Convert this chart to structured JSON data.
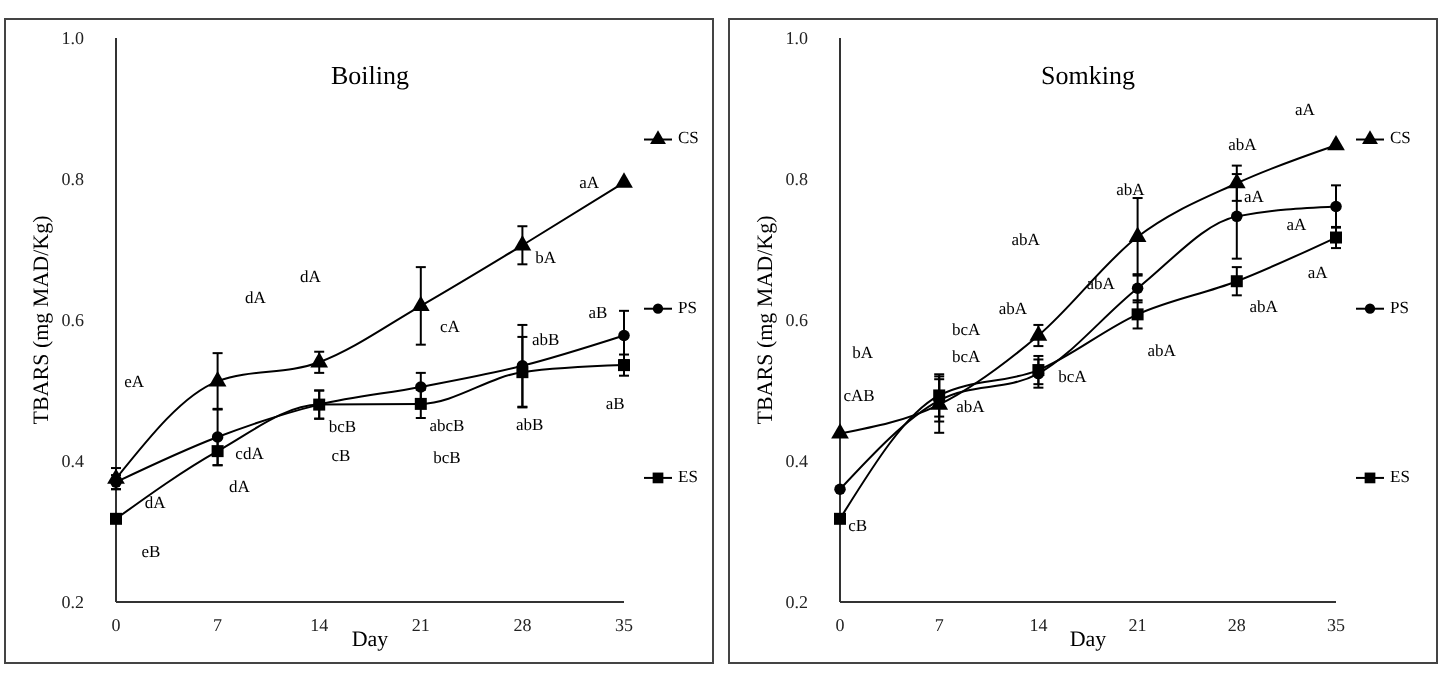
{
  "chart_data": [
    {
      "type": "line",
      "title": "Boiling",
      "xlabel": "Day",
      "ylabel": "TBARS (mg MAD/Kg)",
      "x": [
        0,
        7,
        14,
        21,
        28,
        35
      ],
      "xlim": [
        0,
        35
      ],
      "xticks": [
        0,
        7,
        14,
        21,
        28,
        35
      ],
      "ylim": [
        0.2,
        1.0
      ],
      "yticks": [
        {
          "value": 0.2,
          "label": "0.2"
        },
        {
          "value": 0.4,
          "label": "0.4"
        },
        {
          "value": 0.6,
          "label": "0.6"
        },
        {
          "value": 0.8,
          "label": "0.8"
        },
        {
          "value": 1.0,
          "label": "1.0"
        }
      ],
      "grid": false,
      "legend": "right",
      "line_style": "solid",
      "series": [
        {
          "name": "CS",
          "color": "#000000",
          "marker": "triangle",
          "values": [
            0.375,
            0.513,
            0.54,
            0.62,
            0.706,
            0.795
          ],
          "errors": [
            0.015,
            0.04,
            0.015,
            0.055,
            0.027,
            null
          ]
        },
        {
          "name": "PS",
          "color": "#000000",
          "marker": "circle",
          "values": [
            0.37,
            0.434,
            0.48,
            0.505,
            0.535,
            0.578
          ],
          "errors": [
            0.01,
            0.04,
            0.02,
            0.02,
            0.058,
            0.035
          ]
        },
        {
          "name": "ES",
          "color": "#000000",
          "marker": "square",
          "values": [
            0.318,
            0.414,
            0.48,
            0.481,
            0.526,
            0.536
          ],
          "errors": [
            null,
            0.02,
            0.02,
            0.02,
            0.05,
            0.015
          ]
        }
      ],
      "annotations": [
        "eA",
        "dA",
        "dA",
        "aA",
        "bA",
        "cA",
        "aB",
        "abB",
        "aB",
        "abB",
        "abcB",
        "bcB",
        "bcB",
        "cB",
        "cdA",
        "dA",
        "dA",
        "eB"
      ]
    },
    {
      "type": "line",
      "title": "Somking",
      "xlabel": "Day",
      "ylabel": "TBARS (mg MAD/Kg)",
      "x": [
        0,
        7,
        14,
        21,
        28,
        35
      ],
      "xlim": [
        0,
        35
      ],
      "xticks": [
        0,
        7,
        14,
        21,
        28,
        35
      ],
      "ylim": [
        0.2,
        1.0
      ],
      "yticks": [
        {
          "value": 0.2,
          "label": "0.2"
        },
        {
          "value": 0.4,
          "label": "0.4"
        },
        {
          "value": 0.6,
          "label": "0.6"
        },
        {
          "value": 0.8,
          "label": "0.8"
        },
        {
          "value": 1.0,
          "label": "1.0"
        }
      ],
      "grid": false,
      "legend": "right",
      "line_style": "solid",
      "series": [
        {
          "name": "CS",
          "color": "#000000",
          "marker": "triangle",
          "values": [
            0.439,
            0.48,
            0.578,
            0.718,
            0.794,
            0.848
          ],
          "errors": [
            null,
            0.04,
            0.015,
            0.055,
            0.025,
            null
          ]
        },
        {
          "name": "PS",
          "color": "#000000",
          "marker": "circle",
          "values": [
            0.36,
            0.486,
            0.524,
            0.645,
            0.747,
            0.761
          ],
          "errors": [
            null,
            0.03,
            0.02,
            0.02,
            0.06,
            0.03
          ]
        },
        {
          "name": "ES",
          "color": "#000000",
          "marker": "square",
          "values": [
            0.318,
            0.493,
            0.529,
            0.608,
            0.655,
            0.717
          ],
          "errors": [
            null,
            0.03,
            0.02,
            0.02,
            0.02,
            0.015
          ]
        }
      ],
      "annotations": [
        "aA",
        "abA",
        "aA",
        "aA",
        "aA",
        "abA",
        "abA",
        "abA",
        "abA",
        "abA",
        "abA",
        "bcA",
        "bcA",
        "bcA",
        "abA",
        "bA",
        "cAB",
        "cB"
      ]
    }
  ]
}
